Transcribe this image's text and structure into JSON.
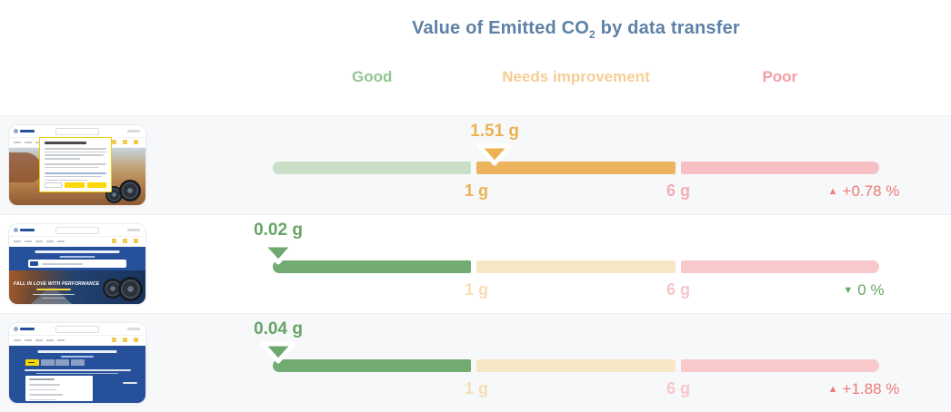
{
  "title": {
    "before": "Value of Emitted CO",
    "sub": "2",
    "after": " by data transfer"
  },
  "zones": [
    {
      "label": "Good"
    },
    {
      "label": "Needs improvement"
    },
    {
      "label": "Poor"
    }
  ],
  "colors": {
    "title_blue": "#5E81A8",
    "good_green": "#73AC73",
    "good_green_dim": "#CBDEC7",
    "warning_orange": "#ECB45C",
    "warning_cream_dim": "#F8E7C6",
    "poor_pink": "#F8C8CB",
    "increase_red": "#EE7B76",
    "decrease_green": "#68A868",
    "michelin_blue": "#27509B",
    "michelin_yellow": "#FCD800"
  },
  "rows": [
    {
      "thumbnail": "michelin-page-cookie-consent",
      "value": "1.51 g",
      "state": "needs-improvement",
      "marker_percent": 36.6,
      "tick1": "1 g",
      "tick2": "6 g",
      "trend": "up",
      "change": "+0.78 %",
      "change_color": "red"
    },
    {
      "thumbnail": "michelin-homepage",
      "value": "0.02 g",
      "state": "good",
      "marker_percent": 0.9,
      "tick1": "1 g",
      "tick2": "6 g",
      "trend": "down",
      "change": "0 %",
      "change_color": "green",
      "hero_text": "FALL IN LOVE WITH PERFORMANCE"
    },
    {
      "thumbnail": "michelin-tire-finder",
      "value": "0.04 g",
      "state": "good",
      "marker_percent": 0.9,
      "tick1": "1 g",
      "tick2": "6 g",
      "trend": "up",
      "change": "+1.88 %",
      "change_color": "red"
    }
  ],
  "chart_data": {
    "type": "bullet",
    "title": "Value of Emitted CO2 by data transfer",
    "unit": "g",
    "zones": [
      {
        "label": "Good",
        "range": [
          0,
          1
        ]
      },
      {
        "label": "Needs improvement",
        "range": [
          1,
          6
        ]
      },
      {
        "label": "Poor",
        "range": [
          6,
          null
        ]
      }
    ],
    "threshold_labels": [
      "1 g",
      "6 g"
    ],
    "legend_position": "top",
    "grid": false,
    "rows": [
      {
        "page_thumbnail": "michelin-page-cookie-consent",
        "co2_g": 1.51,
        "zone": "Needs improvement",
        "change_pct": 0.78,
        "trend": "up"
      },
      {
        "page_thumbnail": "michelin-homepage",
        "co2_g": 0.02,
        "zone": "Good",
        "change_pct": 0,
        "trend": "down"
      },
      {
        "page_thumbnail": "michelin-tire-finder",
        "co2_g": 0.04,
        "zone": "Good",
        "change_pct": 1.88,
        "trend": "up"
      }
    ]
  }
}
